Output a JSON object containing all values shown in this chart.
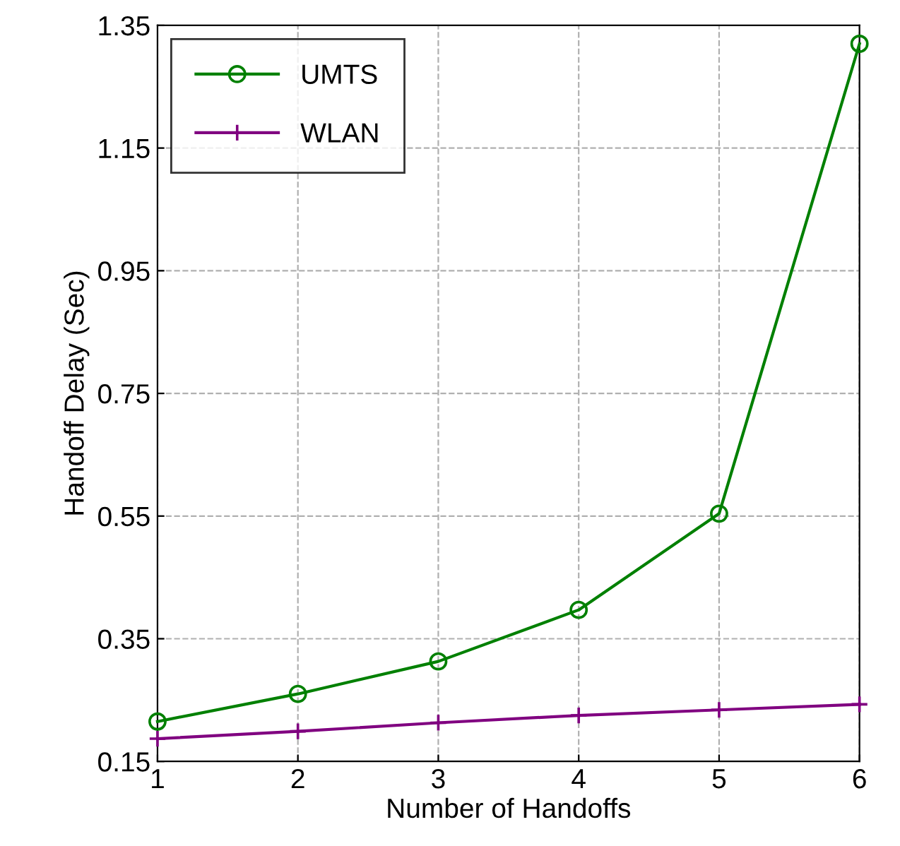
{
  "chart_data": {
    "type": "line",
    "xlabel": "Number of Handoffs",
    "ylabel": "Handoff Delay (Sec)",
    "x": [
      1,
      2,
      3,
      4,
      5,
      6
    ],
    "series": [
      {
        "name": "UMTS",
        "color": "#008000",
        "marker": "circle",
        "values": [
          0.215,
          0.26,
          0.313,
          0.397,
          0.554,
          1.32
        ]
      },
      {
        "name": "WLAN",
        "color": "#800080",
        "marker": "cross",
        "values": [
          0.187,
          0.199,
          0.213,
          0.225,
          0.234,
          0.243
        ]
      }
    ],
    "xlim": [
      1,
      6
    ],
    "xticks": [
      1,
      2,
      3,
      4,
      5,
      6
    ],
    "ylim": [
      0.15,
      1.35
    ],
    "yticks": [
      0.15,
      0.35,
      0.55,
      0.75,
      0.95,
      1.15,
      1.35
    ],
    "grid": true,
    "legend": "top left",
    "line_style": "solid"
  }
}
